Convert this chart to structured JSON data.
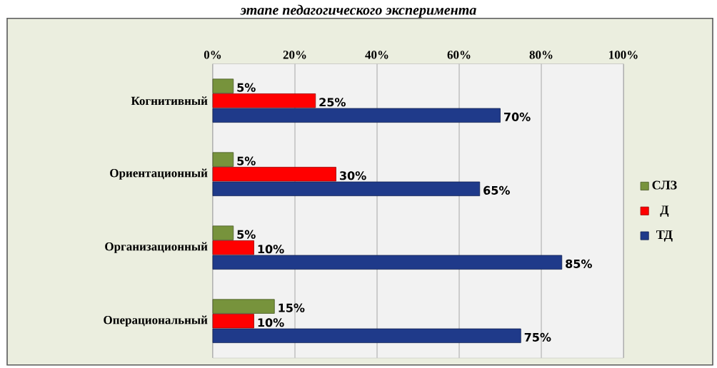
{
  "chart_data": {
    "type": "bar",
    "orientation": "horizontal",
    "title": "этапе педагогического эксперимента",
    "categories": [
      "Когнитивный",
      "Ориентационный",
      "Организационный",
      "Операциональный"
    ],
    "series": [
      {
        "name": "СЛЗ",
        "color": "#77933c",
        "values": [
          5,
          5,
          5,
          15
        ],
        "value_labels": [
          "5%",
          "5%",
          "5%",
          "15%"
        ]
      },
      {
        "name": "Д",
        "color": "#ff0000",
        "values": [
          25,
          30,
          10,
          10
        ],
        "value_labels": [
          "25%",
          "30%",
          "10%",
          "10%"
        ]
      },
      {
        "name": "ТД",
        "color": "#1f3a8a",
        "values": [
          70,
          65,
          85,
          75
        ],
        "value_labels": [
          "70%",
          "65%",
          "85%",
          "75%"
        ]
      }
    ],
    "xlim": [
      0,
      100
    ],
    "xticks": [
      {
        "value": 0,
        "label": "0%"
      },
      {
        "value": 20,
        "label": "20%"
      },
      {
        "value": 40,
        "label": "40%"
      },
      {
        "value": 60,
        "label": "60%"
      },
      {
        "value": 80,
        "label": "80%"
      },
      {
        "value": 100,
        "label": "100%"
      }
    ],
    "grid": "x",
    "legend": "right"
  }
}
